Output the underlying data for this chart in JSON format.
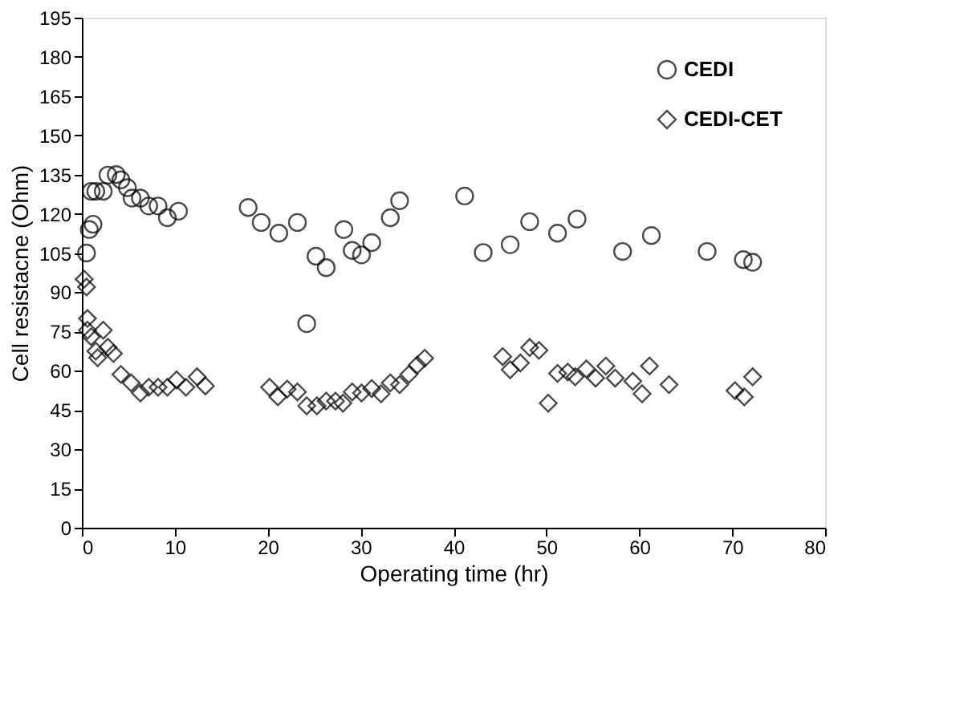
{
  "chart_data": {
    "type": "scatter",
    "xlabel": "Operating time (hr)",
    "ylabel": "Cell resistacne (Ohm)",
    "xlim": [
      0,
      80
    ],
    "xticks": [
      0,
      10,
      20,
      30,
      40,
      50,
      60,
      70,
      80
    ],
    "ylim": [
      0,
      195
    ],
    "yticks": [
      0,
      15,
      30,
      45,
      60,
      75,
      90,
      105,
      120,
      135,
      150,
      165,
      180,
      195
    ],
    "grid": false,
    "legend": "top right",
    "series": [
      {
        "name": "CEDI",
        "color": "#000000",
        "marker": "circle",
        "x": [
          0.5,
          0.8,
          1.2,
          1,
          1.5,
          2.3,
          2.8,
          3.7,
          4.2,
          4.9,
          5.4,
          6.3,
          7.2,
          8.2,
          9.2,
          10.4,
          17.9,
          19.3,
          21.2,
          23.2,
          24.2,
          25.2,
          26.3,
          28.2,
          29.1,
          30.1,
          31.2,
          33.2,
          34.2,
          41.2,
          43.2,
          46.1,
          48.2,
          51.2,
          53.3,
          58.2,
          61.3,
          67.3,
          71.2,
          72.2
        ],
        "values": [
          105,
          114,
          116,
          128.6,
          128.6,
          128.6,
          134.8,
          135,
          133,
          130,
          126,
          126,
          123,
          123,
          118.5,
          121,
          122.4,
          116.7,
          112.6,
          116.7,
          78,
          103.8,
          99.4,
          114,
          106,
          104.3,
          109,
          118.5,
          125,
          126.8,
          105.2,
          108.2,
          117,
          112.6,
          118,
          105.6,
          111.7,
          105.6,
          102.5,
          101.5
        ]
      },
      {
        "name": "CEDI-CET",
        "color": "#000000",
        "marker": "diamond",
        "x": [
          0.25,
          0.5,
          0.6,
          0.6,
          1,
          1.5,
          2.3,
          1.7,
          2.8,
          3.4,
          4.2,
          5.3,
          6.3,
          7.2,
          8.2,
          9.2,
          10.2,
          11.2,
          12.4,
          13.3,
          20.2,
          21.1,
          22.1,
          23.2,
          24.2,
          25.3,
          26.3,
          27.3,
          28.1,
          29.1,
          30.1,
          31.2,
          32.2,
          33.2,
          34.2,
          35.2,
          36.1,
          36.9,
          45.3,
          46.1,
          47.2,
          48.2,
          49.2,
          50.2,
          51.2,
          52.3,
          53.1,
          54.3,
          55.3,
          56.4,
          57.4,
          59.3,
          60.3,
          61.1,
          63.2,
          70.3,
          71.3,
          72.2
        ],
        "values": [
          95,
          92,
          80,
          75.5,
          73,
          67.5,
          75.5,
          65,
          69,
          66.6,
          58.6,
          55.4,
          51.5,
          53.7,
          53.7,
          53.7,
          56.5,
          53.7,
          57.7,
          54.2,
          53.7,
          50,
          53,
          51.9,
          46.6,
          46.6,
          48.4,
          48.4,
          47.6,
          51.9,
          51.5,
          53.2,
          51.2,
          55.4,
          54.7,
          58.6,
          62.2,
          64.8,
          65.4,
          60.4,
          63,
          68.9,
          67.8,
          47.6,
          59,
          59.5,
          57.7,
          60.7,
          57.2,
          61.8,
          57.2,
          56,
          51.2,
          61.8,
          54.7,
          52.4,
          50,
          57.7
        ]
      }
    ]
  }
}
